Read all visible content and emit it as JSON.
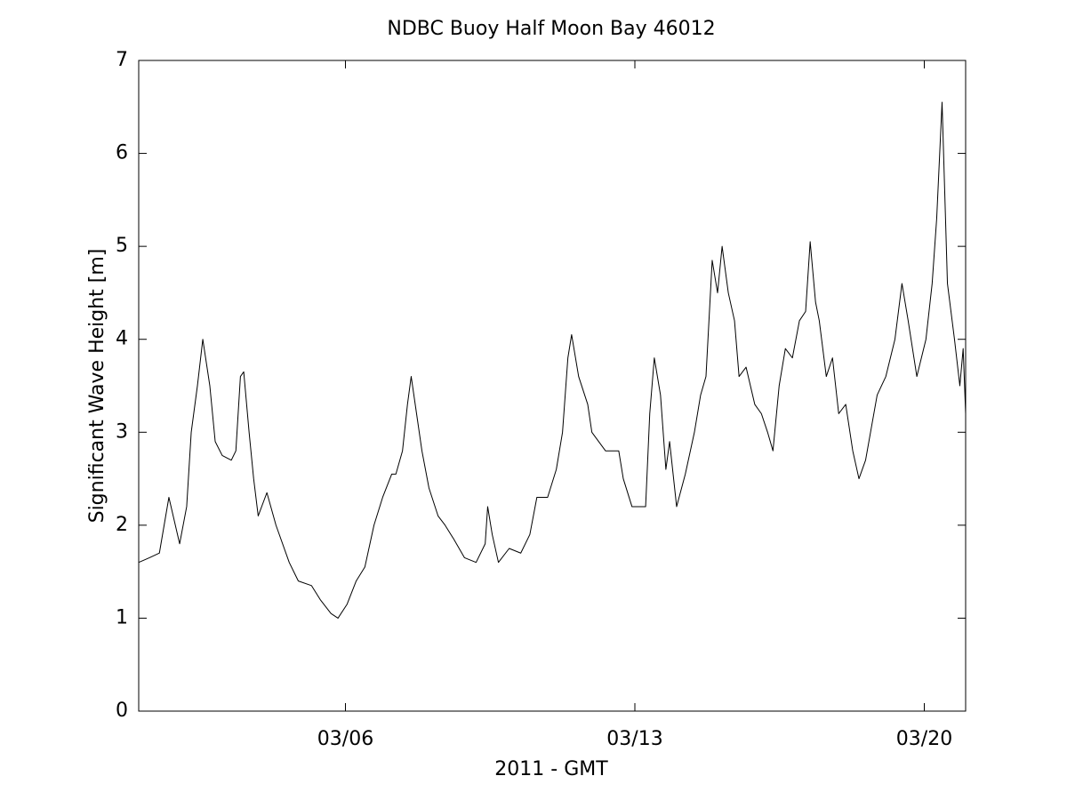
{
  "chart_data": {
    "type": "line",
    "title": "NDBC Buoy Half Moon Bay 46012",
    "xlabel": "2011 - GMT",
    "ylabel": "Significant Wave Height [m]",
    "x": [
      1.0,
      1.26,
      1.5,
      1.73,
      1.99,
      2.16,
      2.27,
      2.42,
      2.55,
      2.72,
      2.85,
      3.02,
      3.24,
      3.35,
      3.46,
      3.54,
      3.67,
      3.78,
      3.89,
      4.1,
      4.32,
      4.64,
      4.86,
      5.18,
      5.39,
      5.65,
      5.82,
      6.04,
      6.26,
      6.47,
      6.69,
      6.9,
      7.12,
      7.22,
      7.38,
      7.5,
      7.59,
      7.72,
      7.85,
      8.02,
      8.24,
      8.41,
      8.62,
      8.88,
      9.16,
      9.38,
      9.44,
      9.55,
      9.7,
      9.96,
      10.24,
      10.46,
      10.63,
      10.89,
      11.1,
      11.25,
      11.38,
      11.47,
      11.64,
      11.86,
      11.96,
      12.29,
      12.61,
      12.72,
      12.93,
      13.26,
      13.36,
      13.47,
      13.62,
      13.75,
      13.84,
      14.01,
      14.22,
      14.44,
      14.59,
      14.72,
      14.87,
      15.0,
      15.11,
      15.26,
      15.41,
      15.52,
      15.69,
      15.9,
      16.06,
      16.21,
      16.34,
      16.49,
      16.64,
      16.81,
      16.98,
      17.13,
      17.24,
      17.37,
      17.46,
      17.63,
      17.78,
      17.93,
      18.1,
      18.27,
      18.42,
      18.58,
      18.7,
      18.86,
      19.07,
      19.29,
      19.46,
      19.61,
      19.82,
      20.04,
      20.19,
      20.3,
      20.43,
      20.56,
      20.73,
      20.86,
      20.94,
      21.0
    ],
    "series": [
      {
        "name": "Significant Wave Height",
        "color": "#000000",
        "values": [
          1.6,
          1.65,
          1.7,
          2.3,
          1.8,
          2.2,
          3.0,
          3.5,
          4.0,
          3.5,
          2.9,
          2.75,
          2.7,
          2.8,
          3.6,
          3.65,
          3.0,
          2.5,
          2.1,
          2.35,
          2.0,
          1.6,
          1.4,
          1.35,
          1.2,
          1.05,
          1.0,
          1.15,
          1.4,
          1.55,
          2.0,
          2.3,
          2.55,
          2.55,
          2.8,
          3.3,
          3.6,
          3.2,
          2.8,
          2.4,
          2.1,
          2.0,
          1.85,
          1.65,
          1.6,
          1.8,
          2.2,
          1.9,
          1.6,
          1.75,
          1.7,
          1.9,
          2.3,
          2.3,
          2.6,
          3.0,
          3.8,
          4.05,
          3.6,
          3.3,
          3.0,
          2.8,
          2.8,
          2.5,
          2.2,
          2.2,
          3.2,
          3.8,
          3.4,
          2.6,
          2.9,
          2.2,
          2.55,
          3.0,
          3.4,
          3.6,
          4.85,
          4.5,
          5.0,
          4.5,
          4.2,
          3.6,
          3.7,
          3.3,
          3.2,
          3.0,
          2.8,
          3.5,
          3.9,
          3.8,
          4.2,
          4.3,
          5.05,
          4.4,
          4.2,
          3.6,
          3.8,
          3.2,
          3.3,
          2.8,
          2.5,
          2.7,
          3.0,
          3.4,
          3.6,
          4.0,
          4.6,
          4.2,
          3.6,
          4.0,
          4.6,
          5.3,
          6.55,
          4.6,
          4.0,
          3.5,
          3.9,
          3.2
        ]
      }
    ],
    "xlim": [
      1,
      21
    ],
    "xticks": [
      {
        "value": 6,
        "label": "03/06"
      },
      {
        "value": 13,
        "label": "03/13"
      },
      {
        "value": 20,
        "label": "03/20"
      }
    ],
    "ylim": [
      0,
      7
    ],
    "yticks": [
      0,
      1,
      2,
      3,
      4,
      5,
      6,
      7
    ],
    "grid": false
  }
}
